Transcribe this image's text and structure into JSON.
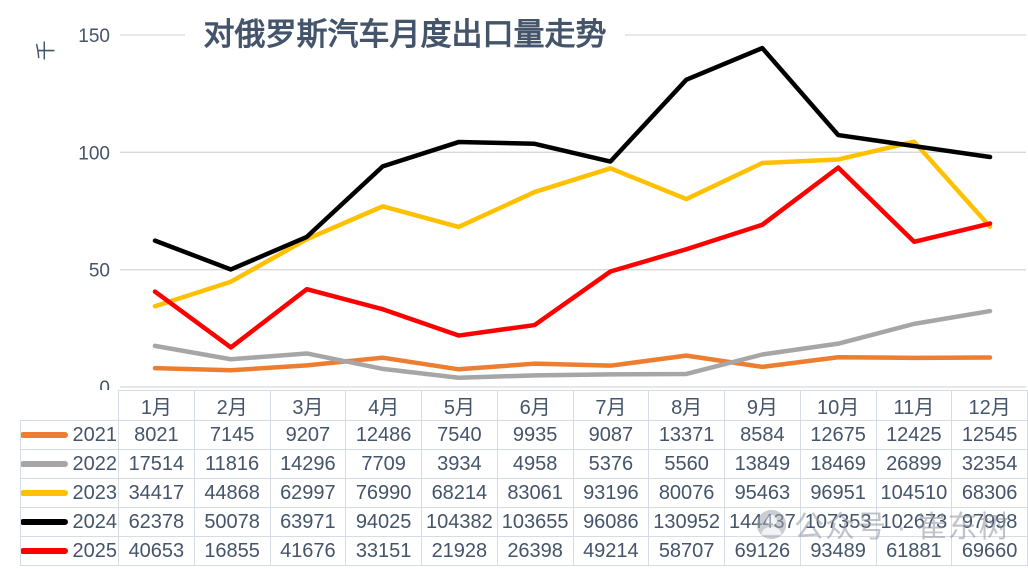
{
  "watermark": {
    "text": "公众号 · 崔东树",
    "icon": "person-avatar-icon"
  },
  "colors": {
    "text": "#44546A",
    "gridline": "#D9D9D9",
    "table_border": "#D6DCE4",
    "background": "#FFFFFF",
    "watermark_gray": "#8E959F"
  },
  "chart_data": {
    "type": "line",
    "title": "对俄罗斯汽车月度出口量走势",
    "unit_label": "千",
    "xlabel": "",
    "ylabel": "千",
    "categories": [
      "1月",
      "2月",
      "3月",
      "4月",
      "5月",
      "6月",
      "7月",
      "8月",
      "9月",
      "10月",
      "11月",
      "12月"
    ],
    "series": [
      {
        "name": "2021",
        "color": "#ED7D31",
        "values": [
          8021,
          7145,
          9207,
          12486,
          7540,
          9935,
          9087,
          13371,
          8584,
          12675,
          12425,
          12545
        ]
      },
      {
        "name": "2022",
        "color": "#A6A6A6",
        "values": [
          17514,
          11816,
          14296,
          7709,
          3934,
          4958,
          5376,
          5560,
          13849,
          18469,
          26899,
          32354
        ]
      },
      {
        "name": "2023",
        "color": "#FFC000",
        "values": [
          34417,
          44868,
          62997,
          76990,
          68214,
          83061,
          93196,
          80076,
          95463,
          96951,
          104510,
          68306
        ]
      },
      {
        "name": "2024",
        "color": "#000000",
        "values": [
          62378,
          50078,
          63971,
          94025,
          104382,
          103655,
          96086,
          130952,
          144437,
          107353,
          102673,
          97998
        ]
      },
      {
        "name": "2025",
        "color": "#FF0000",
        "values": [
          40653,
          16855,
          41676,
          33151,
          21928,
          26398,
          49214,
          58707,
          69126,
          93489,
          61881,
          69660
        ]
      }
    ],
    "ylim": [
      0,
      150000
    ],
    "yticks_thousands": [
      0,
      50,
      100,
      150
    ],
    "grid": true,
    "legend_position": "table-left-column",
    "table_shown_below_chart": true
  }
}
